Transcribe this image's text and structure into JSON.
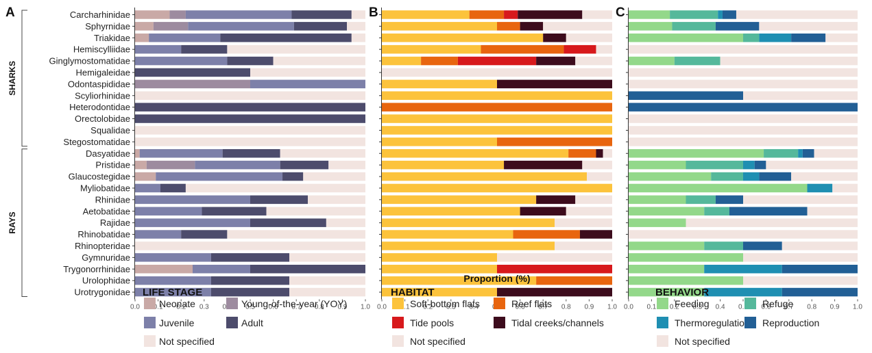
{
  "chart_data": {
    "type": "bar",
    "orientation": "horizontal-stacked",
    "xlabel": "Proportion (%)",
    "xlim": [
      0,
      1
    ],
    "x_ticks": [
      "0.0",
      "0.1",
      "0.2",
      "0.3",
      "0.4",
      "0.5",
      "0.6",
      "0.7",
      "0.8",
      "0.9",
      "1.0"
    ],
    "groups": [
      {
        "label": "SHARKS",
        "from": "Carcharhinidae",
        "to": "Stegostomatidae"
      },
      {
        "label": "RAYS",
        "from": "Dasyatidae",
        "to": "Urotrygonidae"
      }
    ],
    "categories": [
      "Carcharhinidae",
      "Sphyrnidae",
      "Triakidae",
      "Hemiscylliidae",
      "Ginglymostomatidae",
      "Hemigaleidae",
      "Odontaspididae",
      "Scyliorhinidae",
      "Heterodontidae",
      "Orectolobidae",
      "Squalidae",
      "Stegostomatidae",
      "Dasyatidae",
      "Pristidae",
      "Glaucostegidae",
      "Myliobatidae",
      "Rhinidae",
      "Aetobatidae",
      "Rajidae",
      "Rhinobatidae",
      "Rhinopteridae",
      "Gymnuridae",
      "Trygonorrhinidae",
      "Urolophidae",
      "Urotrygonidae"
    ],
    "panels": [
      {
        "letter": "A",
        "legend_title": "LIFE STAGE",
        "series": [
          {
            "name": "Neonate",
            "color": "#c9a9a6",
            "values": [
              0.15,
              0.08,
              0.06,
              0,
              0,
              0,
              0,
              0,
              0,
              0,
              0,
              0,
              0.02,
              0.05,
              0.09,
              0,
              0,
              0,
              0,
              0,
              0,
              0,
              0.25,
              0,
              0
            ]
          },
          {
            "name": "Young-of-the-year (YOY)",
            "color": "#9d8b9f",
            "values": [
              0.07,
              0.15,
              0,
              0,
              0,
              0,
              0.5,
              0,
              0,
              0,
              0,
              0,
              0,
              0.21,
              0,
              0,
              0,
              0,
              0,
              0,
              0,
              0,
              0,
              0,
              0
            ]
          },
          {
            "name": "Juvenile",
            "color": "#7d80a9",
            "values": [
              0.46,
              0.46,
              0.31,
              0.2,
              0.4,
              0,
              0.5,
              0,
              0,
              0,
              0,
              0,
              0.36,
              0.37,
              0.55,
              0.11,
              0.5,
              0.29,
              0.5,
              0.2,
              0,
              0.33,
              0.25,
              0.33,
              0.33
            ]
          },
          {
            "name": "Adult",
            "color": "#4d4c6c",
            "values": [
              0.26,
              0.23,
              0.57,
              0.2,
              0.2,
              0.5,
              0,
              0,
              1.0,
              1.0,
              0,
              0,
              0.25,
              0.21,
              0.09,
              0.11,
              0.25,
              0.28,
              0.33,
              0.2,
              0,
              0.34,
              0.5,
              0.34,
              0.34
            ]
          },
          {
            "name": "Not specified",
            "color": "#f2e4e0",
            "values": [
              0.06,
              0.08,
              0.06,
              0.6,
              0.4,
              0.5,
              0,
              1.0,
              0,
              0,
              1.0,
              1.0,
              0.37,
              0.16,
              0.27,
              0.78,
              0.25,
              0.43,
              0.17,
              0.6,
              1.0,
              0.33,
              0,
              0.33,
              0.33
            ]
          }
        ]
      },
      {
        "letter": "B",
        "legend_title": "HABITAT",
        "series": [
          {
            "name": "Soft-bottom flats",
            "color": "#fcc33c",
            "values": [
              0.38,
              0.5,
              0.7,
              0.43,
              0.17,
              0,
              0.5,
              1.0,
              0,
              1.0,
              1.0,
              0.5,
              0.81,
              0.53,
              0.89,
              1.0,
              0.67,
              0.6,
              0.75,
              0.57,
              0.75,
              0.5,
              0.5,
              0.67,
              0.5
            ]
          },
          {
            "name": "Reef flats",
            "color": "#e8650f",
            "values": [
              0.15,
              0.1,
              0,
              0.36,
              0.16,
              0,
              0,
              0,
              1.0,
              0,
              0,
              0.5,
              0.12,
              0,
              0,
              0,
              0,
              0,
              0,
              0.29,
              0,
              0,
              0,
              0.33,
              0
            ]
          },
          {
            "name": "Tide pools",
            "color": "#d7191c",
            "values": [
              0.06,
              0,
              0,
              0.14,
              0.34,
              0,
              0,
              0,
              0,
              0,
              0,
              0,
              0,
              0,
              0,
              0,
              0,
              0,
              0,
              0,
              0,
              0,
              0.5,
              0,
              0
            ]
          },
          {
            "name": "Tidal creeks/channels",
            "color": "#3d0c1d",
            "values": [
              0.28,
              0.1,
              0.1,
              0,
              0.17,
              0,
              0.5,
              0,
              0,
              0,
              0,
              0,
              0.03,
              0.34,
              0,
              0,
              0.17,
              0.2,
              0,
              0.14,
              0,
              0,
              0,
              0,
              0.5
            ]
          },
          {
            "name": "Not specified",
            "color": "#f2e4e0",
            "values": [
              0.13,
              0.3,
              0.2,
              0.07,
              0.16,
              1.0,
              0,
              0,
              0,
              0,
              0,
              0,
              0.04,
              0.13,
              0.11,
              0,
              0.16,
              0.2,
              0.25,
              0,
              0.25,
              0.5,
              0,
              0,
              0
            ]
          }
        ]
      },
      {
        "letter": "C",
        "legend_title": "BEHAVIOR",
        "series": [
          {
            "name": "Feeding",
            "color": "#93d88a",
            "values": [
              0.18,
              0.19,
              0.5,
              0,
              0.2,
              0,
              0,
              0,
              0,
              0,
              0,
              0,
              0.59,
              0.25,
              0.36,
              0.78,
              0.25,
              0.33,
              0.25,
              0,
              0.33,
              0.5,
              0.33,
              0.5,
              0.33
            ]
          },
          {
            "name": "Refuge",
            "color": "#55b89b",
            "values": [
              0.21,
              0.19,
              0.07,
              0,
              0.2,
              0,
              0,
              0,
              0,
              0,
              0,
              0,
              0.15,
              0.25,
              0.14,
              0,
              0.13,
              0.11,
              0,
              0,
              0.17,
              0,
              0,
              0,
              0
            ]
          },
          {
            "name": "Thermoregulation",
            "color": "#1f8fb2",
            "values": [
              0.02,
              0,
              0.14,
              0,
              0,
              0,
              0,
              0,
              0,
              0,
              0,
              0,
              0.02,
              0.05,
              0.07,
              0.11,
              0,
              0,
              0,
              0,
              0,
              0,
              0.34,
              0,
              0.34
            ]
          },
          {
            "name": "Reproduction",
            "color": "#225f95",
            "values": [
              0.06,
              0.19,
              0.15,
              0,
              0,
              0,
              0,
              0.5,
              1.0,
              0,
              0,
              0,
              0.05,
              0.05,
              0.14,
              0,
              0.12,
              0.34,
              0,
              0,
              0.17,
              0,
              0.33,
              0,
              0.33
            ]
          },
          {
            "name": "Not specified",
            "color": "#f2e4e0",
            "values": [
              0.53,
              0.43,
              0.14,
              1.0,
              0.6,
              1.0,
              1.0,
              0.5,
              0,
              1.0,
              1.0,
              1.0,
              0.19,
              0.4,
              0.29,
              0.11,
              0.5,
              0.22,
              0.75,
              1.0,
              0.33,
              0.5,
              0,
              0.5,
              0
            ]
          }
        ]
      }
    ],
    "legend_layout": [
      [
        "Neonate",
        "Young-of-the-year (YOY)",
        "Juvenile",
        "Adult",
        "Not specified"
      ],
      [
        "Soft-bottom flats",
        "Reef flats",
        "Tide pools",
        "Tidal creeks/channels",
        "Not specified"
      ],
      [
        "Feeding",
        "Refuge",
        "Thermoregulation",
        "Reproduction",
        "Not specified"
      ]
    ]
  }
}
